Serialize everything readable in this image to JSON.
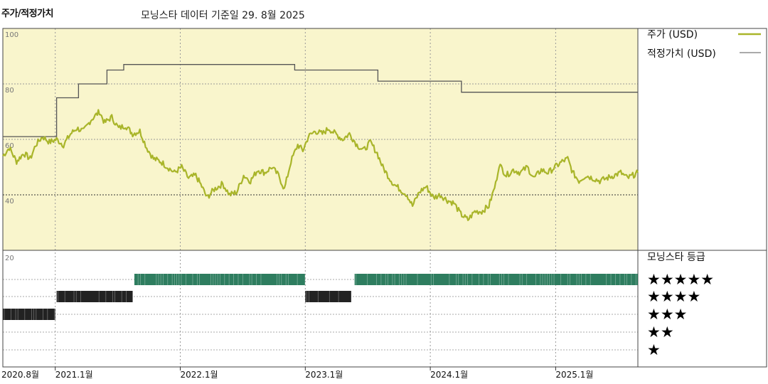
{
  "header": {
    "title": "주가/적정가치",
    "subtitle": "모닝스타 데이터 기준일 29. 8월 2025"
  },
  "colors": {
    "price_line": "#a9b52a",
    "fair_value_line": "#555555",
    "upper_bg": "#f9f5cc",
    "rating_bar_green": "#2e7d5f",
    "rating_bar_dark": "#222222"
  },
  "chart_data": [
    {
      "type": "line",
      "title": "",
      "x_axis": {
        "range": [
          "2020-08-01",
          "2025-08-29"
        ],
        "ticks": [
          "2020.8월",
          "2021.1월",
          "2022.1월",
          "2023.1월",
          "2024.1월",
          "2025.1월"
        ],
        "tick_dates": [
          "2020-08-01",
          "2021-01-01",
          "2022-01-01",
          "2023-01-01",
          "2024-01-01",
          "2025-01-01"
        ]
      },
      "y_axis": {
        "ylim": [
          20,
          100
        ],
        "ticks": [
          20,
          40,
          60,
          80,
          100
        ]
      },
      "legend_placement": "right",
      "series": [
        {
          "name": "주가 (USD)",
          "points": [
            [
              "2020-08-01",
              54
            ],
            [
              "2020-08-20",
              57
            ],
            [
              "2020-09-10",
              52
            ],
            [
              "2020-10-01",
              55
            ],
            [
              "2020-10-20",
              53
            ],
            [
              "2020-11-05",
              58
            ],
            [
              "2020-11-25",
              61
            ],
            [
              "2020-12-15",
              59
            ],
            [
              "2021-01-05",
              60
            ],
            [
              "2021-01-25",
              58
            ],
            [
              "2021-02-15",
              62
            ],
            [
              "2021-03-05",
              64
            ],
            [
              "2021-03-25",
              63
            ],
            [
              "2021-04-15",
              67
            ],
            [
              "2021-05-10",
              70
            ],
            [
              "2021-05-25",
              66
            ],
            [
              "2021-06-15",
              68
            ],
            [
              "2021-07-05",
              64
            ],
            [
              "2021-07-25",
              65
            ],
            [
              "2021-08-15",
              62
            ],
            [
              "2021-09-05",
              63
            ],
            [
              "2021-09-25",
              57
            ],
            [
              "2021-10-15",
              53
            ],
            [
              "2021-11-05",
              52
            ],
            [
              "2021-11-25",
              50
            ],
            [
              "2021-12-15",
              48
            ],
            [
              "2022-01-05",
              50
            ],
            [
              "2022-01-25",
              46
            ],
            [
              "2022-02-15",
              47
            ],
            [
              "2022-03-05",
              43
            ],
            [
              "2022-03-20",
              39
            ],
            [
              "2022-04-10",
              42
            ],
            [
              "2022-05-05",
              44
            ],
            [
              "2022-05-25",
              40
            ],
            [
              "2022-06-15",
              41
            ],
            [
              "2022-07-05",
              47
            ],
            [
              "2022-07-25",
              45
            ],
            [
              "2022-08-15",
              49
            ],
            [
              "2022-09-05",
              48
            ],
            [
              "2022-09-25",
              50
            ],
            [
              "2022-10-15",
              47
            ],
            [
              "2022-11-01",
              42
            ],
            [
              "2022-11-20",
              52
            ],
            [
              "2022-12-10",
              58
            ],
            [
              "2022-12-25",
              56
            ],
            [
              "2023-01-10",
              61
            ],
            [
              "2023-01-30",
              63
            ],
            [
              "2023-02-20",
              62
            ],
            [
              "2023-03-10",
              64
            ],
            [
              "2023-03-30",
              62
            ],
            [
              "2023-04-20",
              60
            ],
            [
              "2023-05-10",
              62
            ],
            [
              "2023-06-01",
              58
            ],
            [
              "2023-06-20",
              56
            ],
            [
              "2023-07-10",
              59
            ],
            [
              "2023-07-30",
              55
            ],
            [
              "2023-08-15",
              50
            ],
            [
              "2023-08-30",
              47
            ],
            [
              "2023-09-15",
              44
            ],
            [
              "2023-10-05",
              42
            ],
            [
              "2023-10-25",
              40
            ],
            [
              "2023-11-10",
              36
            ],
            [
              "2023-11-30",
              41
            ],
            [
              "2023-12-20",
              43
            ],
            [
              "2024-01-10",
              39
            ],
            [
              "2024-01-30",
              40
            ],
            [
              "2024-02-20",
              38
            ],
            [
              "2024-03-10",
              37
            ],
            [
              "2024-03-30",
              33
            ],
            [
              "2024-04-20",
              31
            ],
            [
              "2024-05-10",
              34
            ],
            [
              "2024-05-30",
              34
            ],
            [
              "2024-06-20",
              36
            ],
            [
              "2024-07-10",
              44
            ],
            [
              "2024-07-20",
              51
            ],
            [
              "2024-08-10",
              47
            ],
            [
              "2024-08-30",
              49
            ],
            [
              "2024-09-20",
              48
            ],
            [
              "2024-10-10",
              50
            ],
            [
              "2024-10-30",
              46
            ],
            [
              "2024-11-20",
              49
            ],
            [
              "2024-12-10",
              48
            ],
            [
              "2024-12-30",
              50
            ],
            [
              "2025-01-20",
              52
            ],
            [
              "2025-02-05",
              53
            ],
            [
              "2025-02-20",
              48
            ],
            [
              "2025-03-10",
              45
            ],
            [
              "2025-03-30",
              47
            ],
            [
              "2025-04-20",
              46
            ],
            [
              "2025-05-10",
              45
            ],
            [
              "2025-05-30",
              46
            ],
            [
              "2025-06-20",
              47
            ],
            [
              "2025-07-10",
              48
            ],
            [
              "2025-07-30",
              46
            ],
            [
              "2025-08-29",
              48
            ]
          ]
        },
        {
          "name": "적정가치 (USD)",
          "points": [
            [
              "2020-08-01",
              61
            ],
            [
              "2021-01-05",
              61
            ],
            [
              "2021-01-05",
              75
            ],
            [
              "2021-03-10",
              75
            ],
            [
              "2021-03-10",
              80
            ],
            [
              "2021-06-01",
              80
            ],
            [
              "2021-06-01",
              85
            ],
            [
              "2021-07-20",
              85
            ],
            [
              "2021-07-20",
              87
            ],
            [
              "2022-12-01",
              87
            ],
            [
              "2022-12-01",
              85
            ],
            [
              "2023-08-01",
              85
            ],
            [
              "2023-08-01",
              81
            ],
            [
              "2024-04-01",
              81
            ],
            [
              "2024-04-01",
              77
            ],
            [
              "2025-08-29",
              77
            ]
          ]
        }
      ]
    },
    {
      "type": "bar",
      "title": "모닝스타 등급",
      "categories": [
        "★★★★★",
        "★★★★",
        "★★★",
        "★★",
        "★"
      ],
      "series": [
        {
          "rating": 3,
          "start": "2020-08-01",
          "end": "2021-01-01"
        },
        {
          "rating": 4,
          "start": "2021-01-05",
          "end": "2021-08-15"
        },
        {
          "rating": 5,
          "start": "2021-08-20",
          "end": "2022-12-31"
        },
        {
          "rating": 4,
          "start": "2023-01-01",
          "end": "2023-05-15"
        },
        {
          "rating": 5,
          "start": "2023-05-25",
          "end": "2025-08-29"
        }
      ]
    }
  ]
}
